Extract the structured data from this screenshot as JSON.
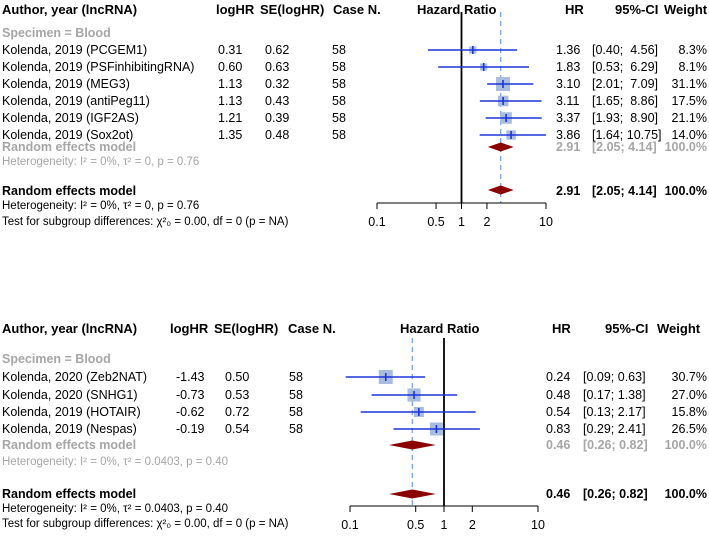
{
  "colors": {
    "ci_line": "#1d35d8",
    "square": "#a9bde0",
    "diamond": "#8b0000",
    "ref_dash": "#7aa5e6",
    "grey_text": "#a6a6a6"
  },
  "panels": [
    {
      "headers": {
        "study": "Author, year (lncRNA)",
        "loghr": "logHR",
        "se": "SE(logHR)",
        "casen": "Case N.",
        "plot": "Hazard Ratio",
        "hr": "HR",
        "ci": "95%-CI",
        "weight": "Weight"
      },
      "subgroup_label": "Specimen = Blood",
      "subgroup_model": {
        "label": "Random effects model",
        "hr": "2.91",
        "ci": "[2.05; 4.14]",
        "weight": "100.0%"
      },
      "subgroup_heterogeneity": "Heterogeneity: I² = 0%, τ² = 0, p = 0.76",
      "overall_model": {
        "label": "Random effects model",
        "hr": "2.91",
        "ci": "[2.05; 4.14]",
        "weight": "100.0%"
      },
      "overall_heterogeneity": "Heterogeneity: I² = 0%, τ² = 0, p = 0.76",
      "subgroup_test": "Test for subgroup differences: χ²₀ = 0.00, df = 0 (p = NA)"
    },
    {
      "headers": {
        "study": "Author, year (lncRNA)",
        "loghr": "logHR",
        "se": "SE(logHR)",
        "casen": "Case N.",
        "plot": "Hazard Ratio",
        "hr": "HR",
        "ci": "95%-CI",
        "weight": "Weight"
      },
      "subgroup_label": "Specimen = Blood",
      "subgroup_model": {
        "label": "Random effects model",
        "hr": "0.46",
        "ci": "[0.26; 0.82]",
        "weight": "100.0%"
      },
      "subgroup_heterogeneity": "Heterogeneity: I² = 0%, τ² = 0.0403, p = 0.40",
      "overall_model": {
        "label": "Random effects model",
        "hr": "0.46",
        "ci": "[0.26; 0.82]",
        "weight": "100.0%"
      },
      "overall_heterogeneity": "Heterogeneity: I² = 0%, τ² = 0.0403, p = 0.40",
      "subgroup_test": "Test for subgroup differences: χ²₀ = 0.00, df = 0 (p = NA)"
    }
  ],
  "chart_data": [
    {
      "type": "forest",
      "title": "Hazard Ratio",
      "xscale": "log",
      "xlim": [
        0.1,
        10
      ],
      "xticks": [
        "0.1",
        "0.5",
        "1",
        "2",
        "10"
      ],
      "xtick_values": [
        0.1,
        0.5,
        1,
        2,
        10
      ],
      "reference_line": 1,
      "pooled_line": 2.91,
      "studies": [
        {
          "name": "Kolenda, 2019 (PCGEM1)",
          "loghr": "0.31",
          "se": "0.62",
          "casen": "58",
          "hr": 1.36,
          "lo": 0.4,
          "hi": 4.56,
          "hr_text": "1.36",
          "ci_text": "[0.40;  4.56]",
          "weight": 8.3,
          "weight_text": "8.3%"
        },
        {
          "name": "Kolenda, 2019 (PSFinhibitingRNA)",
          "loghr": "0.60",
          "se": "0.63",
          "casen": "58",
          "hr": 1.83,
          "lo": 0.53,
          "hi": 6.29,
          "hr_text": "1.83",
          "ci_text": "[0.53;  6.29]",
          "weight": 8.1,
          "weight_text": "8.1%"
        },
        {
          "name": "Kolenda, 2019 (MEG3)",
          "loghr": "1.13",
          "se": "0.32",
          "casen": "58",
          "hr": 3.1,
          "lo": 2.01,
          "hi": 7.09,
          "hr_text": "3.10",
          "ci_text": "[2.01;  7.09]",
          "weight": 31.1,
          "weight_text": "31.1%"
        },
        {
          "name": "Kolenda, 2019 (antiPeg11)",
          "loghr": "1.13",
          "se": "0.43",
          "casen": "58",
          "hr": 3.11,
          "lo": 1.65,
          "hi": 8.86,
          "hr_text": "3.11",
          "ci_text": "[1.65;  8.86]",
          "weight": 17.5,
          "weight_text": "17.5%"
        },
        {
          "name": "Kolenda, 2019 (IGF2AS)",
          "loghr": "1.21",
          "se": "0.39",
          "casen": "58",
          "hr": 3.37,
          "lo": 1.93,
          "hi": 8.9,
          "hr_text": "3.37",
          "ci_text": "[1.93;  8.90]",
          "weight": 21.1,
          "weight_text": "21.1%"
        },
        {
          "name": "Kolenda, 2019 (Sox2ot)",
          "loghr": "1.35",
          "se": "0.48",
          "casen": "58",
          "hr": 3.86,
          "lo": 1.64,
          "hi": 10.75,
          "hr_text": "3.86",
          "ci_text": "[1.64; 10.75]",
          "weight": 14.0,
          "weight_text": "14.0%"
        }
      ],
      "pooled_subgroup": {
        "hr": 2.91,
        "lo": 2.05,
        "hi": 4.14
      },
      "pooled_overall": {
        "hr": 2.91,
        "lo": 2.05,
        "hi": 4.14
      }
    },
    {
      "type": "forest",
      "title": "Hazard Ratio",
      "xscale": "log",
      "xlim": [
        0.1,
        10
      ],
      "xticks": [
        "0.1",
        "0.5",
        "1",
        "2",
        "10"
      ],
      "xtick_values": [
        0.1,
        0.5,
        1,
        2,
        10
      ],
      "reference_line": 1,
      "pooled_line": 0.46,
      "studies": [
        {
          "name": "Kolenda, 2020 (Zeb2NAT)",
          "loghr": "-1.43",
          "se": "0.50",
          "casen": "58",
          "hr": 0.24,
          "lo": 0.09,
          "hi": 0.63,
          "hr_text": "0.24",
          "ci_text": "[0.09; 0.63]",
          "weight": 30.7,
          "weight_text": "30.7%"
        },
        {
          "name": "Kolenda, 2020 (SNHG1)",
          "loghr": "-0.73",
          "se": "0.53",
          "casen": "58",
          "hr": 0.48,
          "lo": 0.17,
          "hi": 1.38,
          "hr_text": "0.48",
          "ci_text": "[0.17; 1.38]",
          "weight": 27.0,
          "weight_text": "27.0%"
        },
        {
          "name": "Kolenda, 2019 (HOTAIR)",
          "loghr": "-0.62",
          "se": "0.72",
          "casen": "58",
          "hr": 0.54,
          "lo": 0.13,
          "hi": 2.17,
          "hr_text": "0.54",
          "ci_text": "[0.13; 2.17]",
          "weight": 15.8,
          "weight_text": "15.8%"
        },
        {
          "name": "Kolenda, 2019 (Nespas)",
          "loghr": "-0.19",
          "se": "0.54",
          "casen": "58",
          "hr": 0.83,
          "lo": 0.29,
          "hi": 2.41,
          "hr_text": "0.83",
          "ci_text": "[0.29; 2.41]",
          "weight": 26.5,
          "weight_text": "26.5%"
        }
      ],
      "pooled_subgroup": {
        "hr": 0.46,
        "lo": 0.26,
        "hi": 0.82
      },
      "pooled_overall": {
        "hr": 0.46,
        "lo": 0.26,
        "hi": 0.82
      }
    }
  ]
}
